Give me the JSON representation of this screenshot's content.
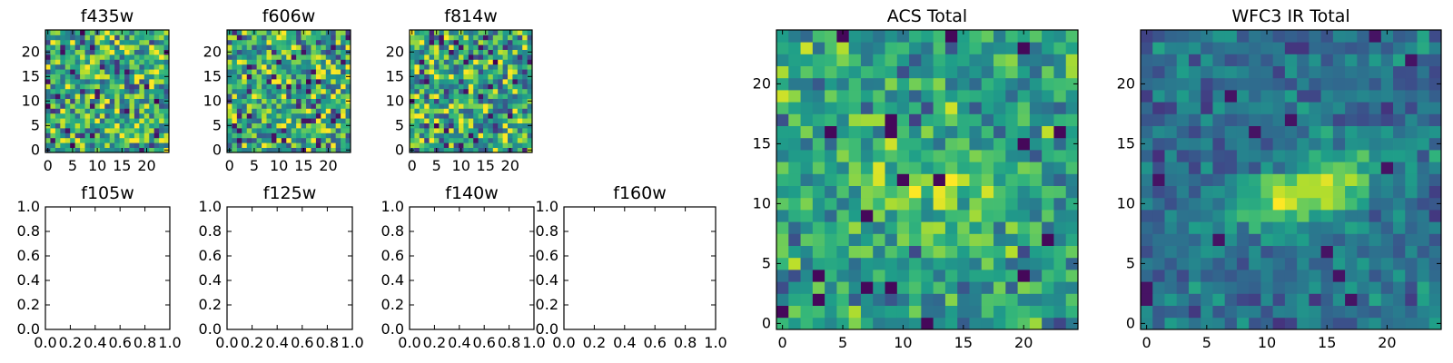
{
  "chart_data": [
    {
      "type": "heatmap",
      "title": "f435w",
      "empty": false,
      "seed": 11,
      "style": "noise",
      "xticks": [
        "0",
        "5",
        "10",
        "15",
        "20"
      ],
      "yticks": [
        "0",
        "5",
        "10",
        "15",
        "20"
      ],
      "xlim": [
        -0.5,
        24.5
      ],
      "ylim": [
        -0.5,
        24.5
      ],
      "colormap": "viridis"
    },
    {
      "type": "heatmap",
      "title": "f606w",
      "empty": false,
      "seed": 23,
      "style": "noise",
      "xticks": [
        "0",
        "5",
        "10",
        "15",
        "20"
      ],
      "yticks": [
        "0",
        "5",
        "10",
        "15",
        "20"
      ],
      "xlim": [
        -0.5,
        24.5
      ],
      "ylim": [
        -0.5,
        24.5
      ],
      "colormap": "viridis"
    },
    {
      "type": "heatmap",
      "title": "f814w",
      "empty": false,
      "seed": 37,
      "style": "noise",
      "xticks": [
        "0",
        "5",
        "10",
        "15",
        "20"
      ],
      "yticks": [
        "0",
        "5",
        "10",
        "15",
        "20"
      ],
      "xlim": [
        -0.5,
        24.5
      ],
      "ylim": [
        -0.5,
        24.5
      ],
      "colormap": "viridis"
    },
    {
      "type": "heatmap",
      "title": "f105w",
      "empty": true,
      "xticks": [
        "0.0",
        "0.2",
        "0.4",
        "0.6",
        "0.8",
        "1.0"
      ],
      "yticks": [
        "0.0",
        "0.2",
        "0.4",
        "0.6",
        "0.8",
        "1.0"
      ],
      "xlim": [
        0,
        1
      ],
      "ylim": [
        0,
        1
      ]
    },
    {
      "type": "heatmap",
      "title": "f125w",
      "empty": true,
      "xticks": [
        "0.0",
        "0.2",
        "0.4",
        "0.6",
        "0.8",
        "1.0"
      ],
      "yticks": [
        "0.0",
        "0.2",
        "0.4",
        "0.6",
        "0.8",
        "1.0"
      ],
      "xlim": [
        0,
        1
      ],
      "ylim": [
        0,
        1
      ]
    },
    {
      "type": "heatmap",
      "title": "f140w",
      "empty": true,
      "xticks": [
        "0.0",
        "0.2",
        "0.4",
        "0.6",
        "0.8",
        "1.0"
      ],
      "yticks": [
        "0.0",
        "0.2",
        "0.4",
        "0.6",
        "0.8",
        "1.0"
      ],
      "xlim": [
        0,
        1
      ],
      "ylim": [
        0,
        1
      ]
    },
    {
      "type": "heatmap",
      "title": "f160w",
      "empty": true,
      "xticks": [
        "0.0",
        "0.2",
        "0.4",
        "0.6",
        "0.8",
        "1.0"
      ],
      "yticks": [
        "0.0",
        "0.2",
        "0.4",
        "0.6",
        "0.8",
        "1.0"
      ],
      "xlim": [
        0,
        1
      ],
      "ylim": [
        0,
        1
      ]
    },
    {
      "type": "heatmap",
      "title": "ACS Total",
      "empty": false,
      "seed": 51,
      "style": "acs",
      "xticks": [
        "0",
        "5",
        "10",
        "15",
        "20"
      ],
      "yticks": [
        "0",
        "5",
        "10",
        "15",
        "20"
      ],
      "xlim": [
        -0.5,
        24.5
      ],
      "ylim": [
        -0.5,
        24.5
      ],
      "colormap": "viridis"
    },
    {
      "type": "heatmap",
      "title": "WFC3 IR Total",
      "empty": false,
      "seed": 73,
      "style": "ir",
      "xticks": [
        "0",
        "5",
        "10",
        "15",
        "20"
      ],
      "yticks": [
        "0",
        "5",
        "10",
        "15",
        "20"
      ],
      "xlim": [
        -0.5,
        24.5
      ],
      "ylim": [
        -0.5,
        24.5
      ],
      "colormap": "viridis"
    }
  ]
}
